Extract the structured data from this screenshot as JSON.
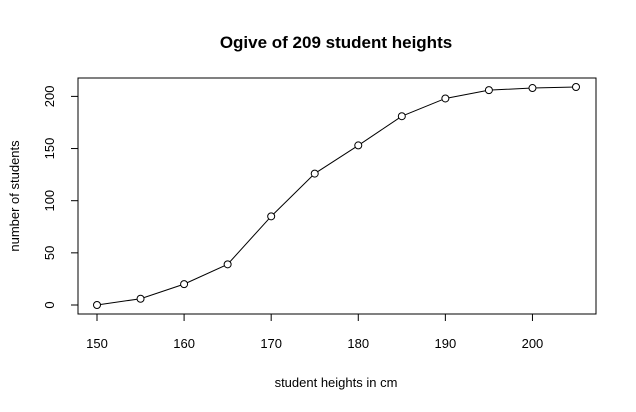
{
  "chart_data": {
    "type": "line",
    "title": "Ogive of 209 student heights",
    "xlabel": "student heights in cm",
    "ylabel": "number of students",
    "x": [
      150,
      155,
      160,
      165,
      170,
      175,
      180,
      185,
      190,
      195,
      200,
      205
    ],
    "series": [
      {
        "values": [
          0,
          6,
          20,
          39,
          85,
          126,
          153,
          181,
          198,
          206,
          208,
          209
        ]
      }
    ],
    "xlim": [
      150,
      205
    ],
    "ylim": [
      0,
      209
    ],
    "xticks": [
      150,
      160,
      170,
      180,
      190,
      200
    ],
    "yticks": [
      0,
      50,
      100,
      150,
      200
    ],
    "line_color": "#000000",
    "marker": "open-circle",
    "grid": false,
    "legend": "none"
  }
}
